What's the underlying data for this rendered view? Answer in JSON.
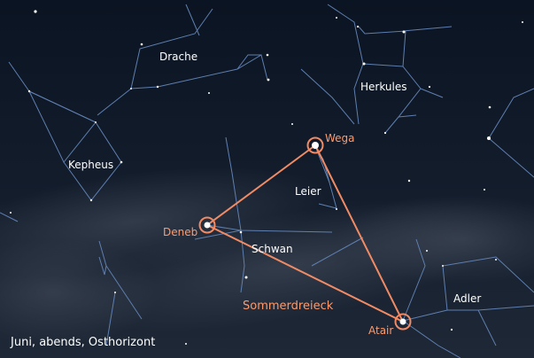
{
  "caption": "Juni, abends, Osthorizont",
  "colors": {
    "sky_top": "#0c1522",
    "sky_bottom": "#1c2635",
    "line": "#5f7fb0",
    "highlight": "#f08b66",
    "label": "#ffffff"
  },
  "constellations": {
    "drache": "Drache",
    "herkules": "Herkules",
    "kepheus": "Kepheus",
    "leier": "Leier",
    "schwan": "Schwan",
    "adler": "Adler"
  },
  "stars": {
    "wega": "Wega",
    "deneb": "Deneb",
    "atair": "Atair"
  },
  "asterism": "Sommerdreieck"
}
